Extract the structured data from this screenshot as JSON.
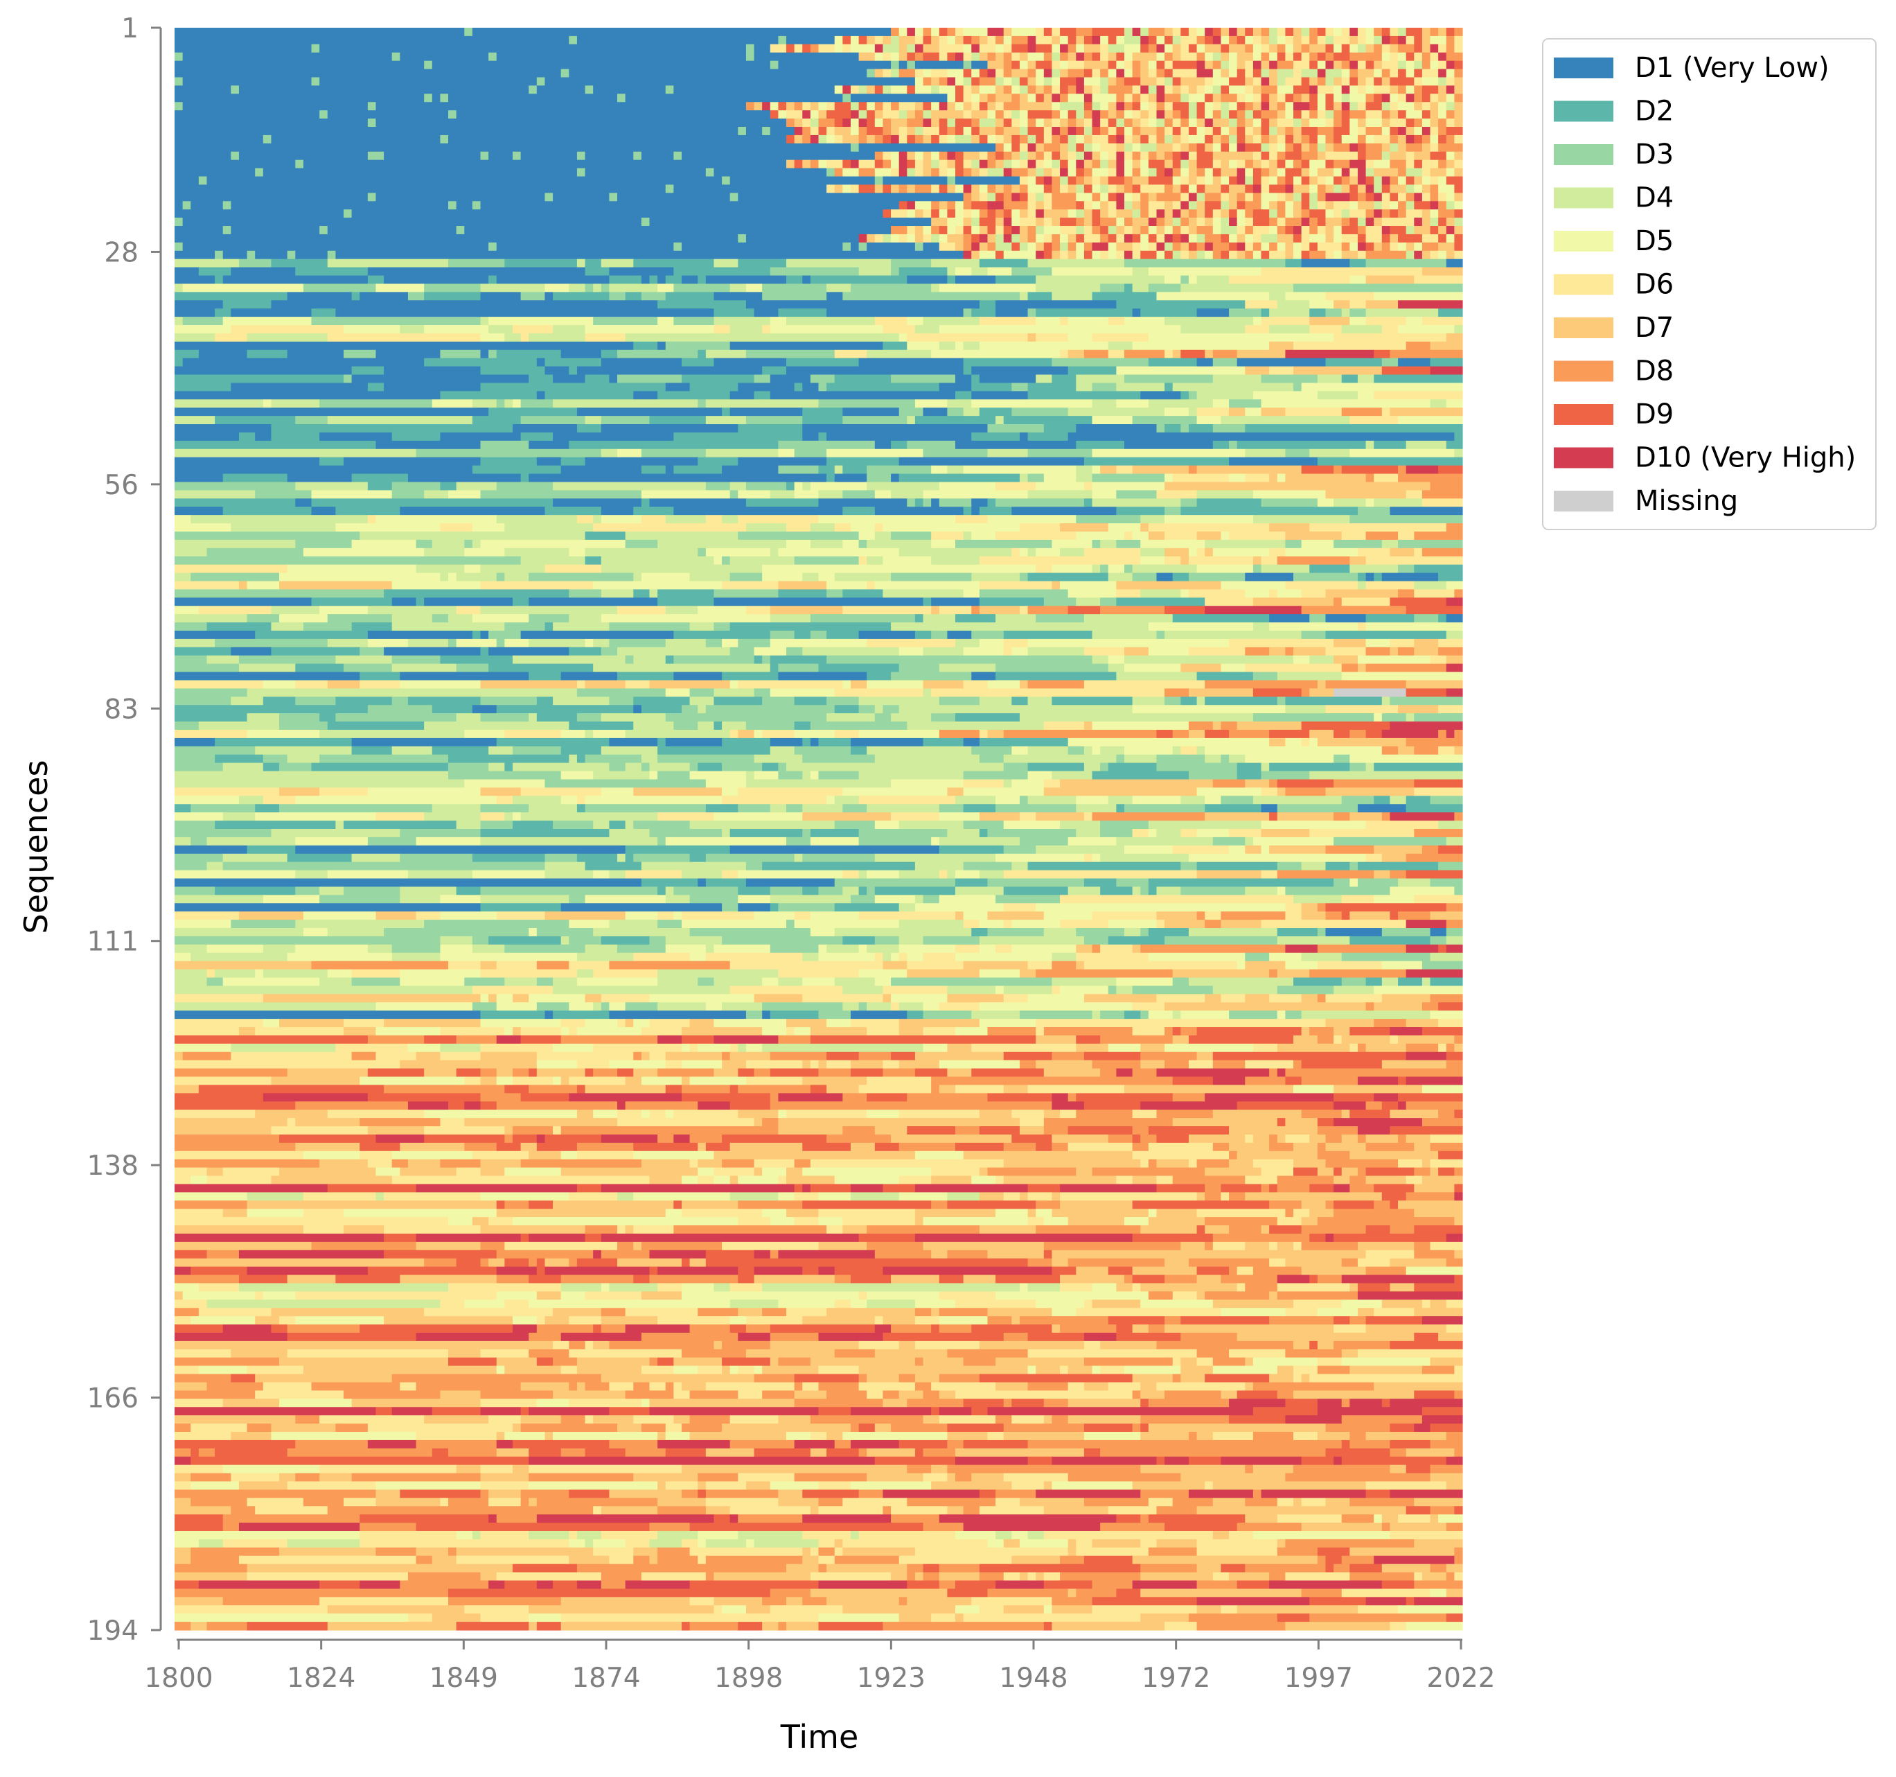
{
  "chart_data": {
    "type": "heatmap",
    "title": "",
    "xlabel": "Time",
    "ylabel": "Sequences",
    "x_range": [
      1800,
      2022
    ],
    "y_range": [
      1,
      194
    ],
    "x_ticks": [
      "1800",
      "1824",
      "1849",
      "1874",
      "1898",
      "1923",
      "1948",
      "1972",
      "1997",
      "2022"
    ],
    "y_ticks": [
      "1",
      "28",
      "56",
      "83",
      "111",
      "138",
      "166",
      "194"
    ],
    "grid": false,
    "legend_position": "outside-top-right",
    "states": [
      {
        "label": "D1 (Very Low)",
        "color": "#3682ba"
      },
      {
        "label": "D2",
        "color": "#5cb7aa"
      },
      {
        "label": "D3",
        "color": "#98d6a4"
      },
      {
        "label": "D4",
        "color": "#d0ec9c"
      },
      {
        "label": "D5",
        "color": "#f1f9a9"
      },
      {
        "label": "D6",
        "color": "#fee999"
      },
      {
        "label": "D7",
        "color": "#fdca79"
      },
      {
        "label": "D8",
        "color": "#fa9b58"
      },
      {
        "label": "D9",
        "color": "#ee6445"
      },
      {
        "label": "D10 (Very High)",
        "color": "#d43d51"
      },
      {
        "label": "Missing",
        "color": "#cfcfcf"
      }
    ]
  }
}
